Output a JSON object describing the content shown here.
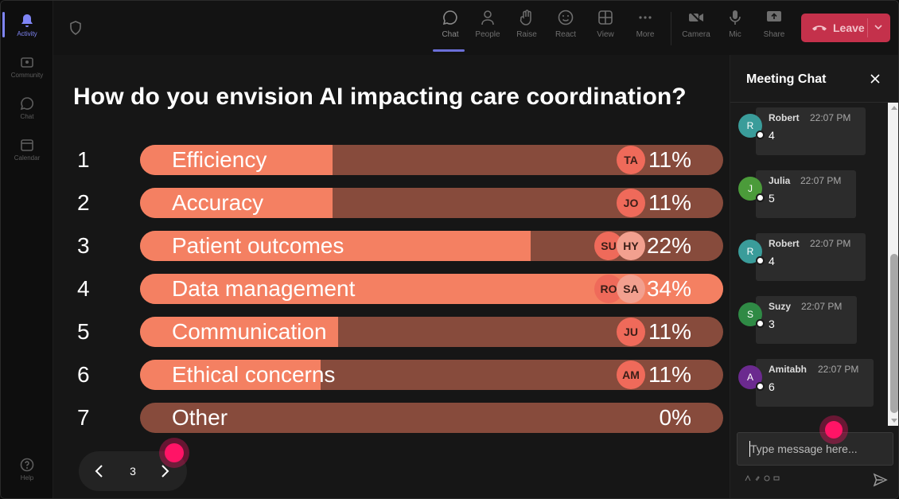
{
  "rail": {
    "items": [
      {
        "label": "Activity",
        "icon": "bell-icon"
      },
      {
        "label": "Community",
        "icon": "community-icon"
      },
      {
        "label": "Chat",
        "icon": "chat-icon"
      },
      {
        "label": "Calendar",
        "icon": "calendar-icon"
      }
    ],
    "help": "Help"
  },
  "toolbar": {
    "chat": "Chat",
    "people": "People",
    "raise": "Raise",
    "react": "React",
    "view": "View",
    "more": "More",
    "camera": "Camera",
    "mic": "Mic",
    "share": "Share",
    "leave": "Leave"
  },
  "poll": {
    "title": "How do you envision AI impacting care coordination?",
    "options": [
      {
        "num": "1",
        "label": "Efficiency",
        "percent": "11%",
        "fill": 0.33,
        "avatars": [
          "TA"
        ]
      },
      {
        "num": "2",
        "label": "Accuracy",
        "percent": "11%",
        "fill": 0.33,
        "avatars": [
          "JO"
        ]
      },
      {
        "num": "3",
        "label": "Patient outcomes",
        "percent": "22%",
        "fill": 0.67,
        "avatars": [
          "SU",
          "HY"
        ]
      },
      {
        "num": "4",
        "label": "Data management",
        "percent": "34%",
        "fill": 1.0,
        "avatars": [
          "RO",
          "SA"
        ]
      },
      {
        "num": "5",
        "label": "Communication",
        "percent": "11%",
        "fill": 0.34,
        "avatars": [
          "JU"
        ]
      },
      {
        "num": "6",
        "label": "Ethical concerns",
        "percent": "11%",
        "fill": 0.31,
        "avatars": [
          "AM"
        ]
      },
      {
        "num": "7",
        "label": "Other",
        "percent": "0%",
        "fill": 0.0,
        "avatars": []
      }
    ],
    "page": "3"
  },
  "chat": {
    "title": "Meeting Chat",
    "messages": [
      {
        "initial": "R",
        "name": "Robert",
        "time": "22:07 PM",
        "text": "4",
        "color": "#3a9c9a"
      },
      {
        "initial": "J",
        "name": "Julia",
        "time": "22:07 PM",
        "text": "5",
        "color": "#4b9b3a"
      },
      {
        "initial": "R",
        "name": "Robert",
        "time": "22:07 PM",
        "text": "4",
        "color": "#3a9c9a"
      },
      {
        "initial": "S",
        "name": "Suzy",
        "time": "22:07 PM",
        "text": "3",
        "color": "#2f8a45"
      },
      {
        "initial": "A",
        "name": "Amitabh",
        "time": "22:07 PM",
        "text": "6",
        "color": "#6b2a8f"
      }
    ],
    "placeholder": "Type message here..."
  },
  "colors": {
    "bar_fill": "#f48062",
    "bar_track": "#874b3c",
    "leave": "#c4314b",
    "touch": "#ff1466"
  }
}
